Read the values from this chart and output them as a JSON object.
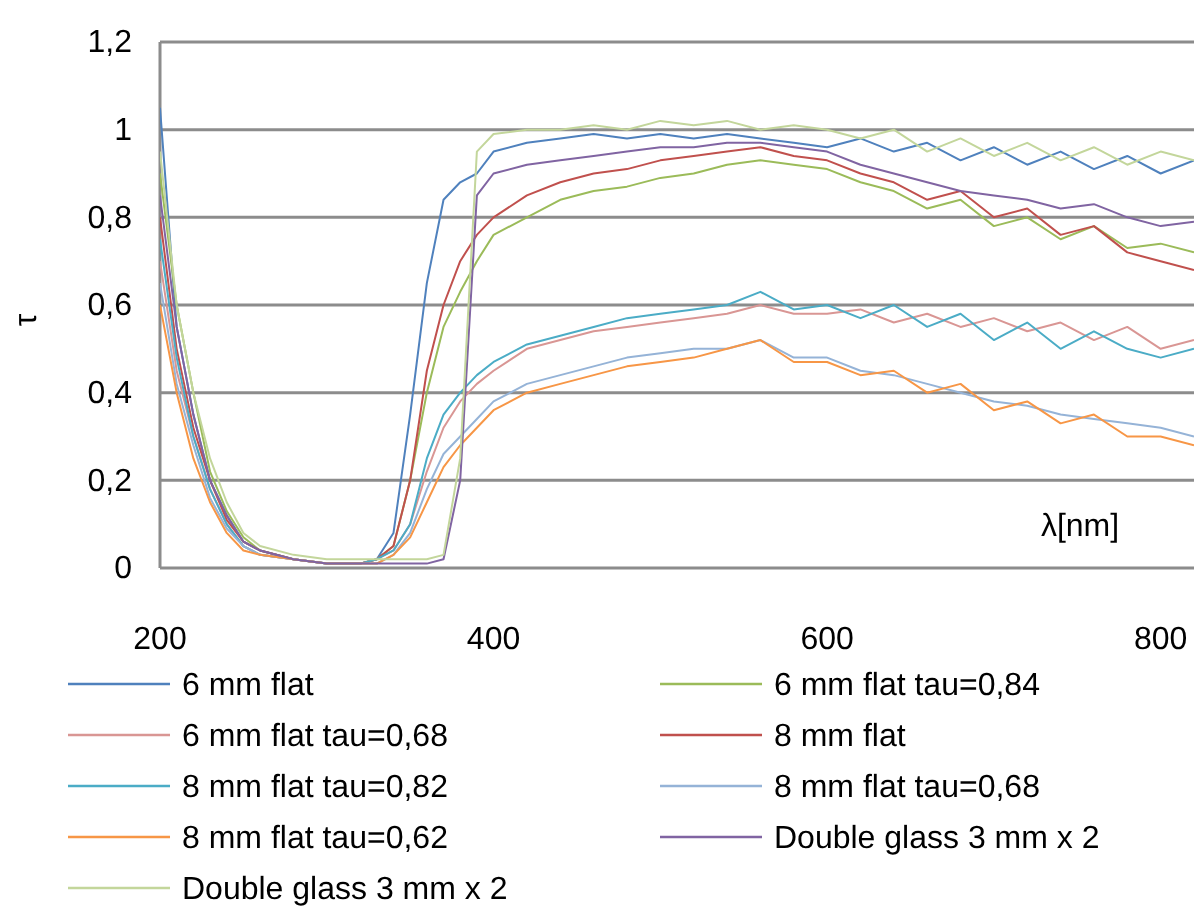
{
  "chart_data": {
    "type": "line",
    "x": [
      200,
      210,
      220,
      230,
      240,
      250,
      260,
      280,
      300,
      320,
      330,
      340,
      350,
      360,
      370,
      380,
      390,
      400,
      420,
      440,
      460,
      480,
      500,
      520,
      540,
      560,
      580,
      600,
      620,
      640,
      660,
      680,
      700,
      720,
      740,
      760,
      780,
      800,
      820
    ],
    "series": [
      {
        "name": "6 mm flat",
        "color": "#4f81bd",
        "values": [
          1.05,
          0.55,
          0.35,
          0.2,
          0.12,
          0.06,
          0.04,
          0.02,
          0.01,
          0.01,
          0.02,
          0.08,
          0.35,
          0.65,
          0.84,
          0.88,
          0.9,
          0.95,
          0.97,
          0.98,
          0.99,
          0.98,
          0.99,
          0.98,
          0.99,
          0.98,
          0.97,
          0.96,
          0.98,
          0.95,
          0.97,
          0.93,
          0.96,
          0.92,
          0.95,
          0.91,
          0.94,
          0.9,
          0.93
        ]
      },
      {
        "name": "6 mm flat tau=0,84",
        "color": "#9bbb59",
        "values": [
          0.9,
          0.6,
          0.4,
          0.22,
          0.13,
          0.07,
          0.04,
          0.02,
          0.01,
          0.01,
          0.02,
          0.05,
          0.2,
          0.4,
          0.55,
          0.63,
          0.7,
          0.76,
          0.8,
          0.84,
          0.86,
          0.87,
          0.89,
          0.9,
          0.92,
          0.93,
          0.92,
          0.91,
          0.88,
          0.86,
          0.82,
          0.84,
          0.78,
          0.8,
          0.75,
          0.78,
          0.73,
          0.74,
          0.72
        ]
      },
      {
        "name": "6 mm flat tau=0,68",
        "color": "#d99694",
        "values": [
          0.7,
          0.45,
          0.3,
          0.18,
          0.1,
          0.05,
          0.03,
          0.02,
          0.01,
          0.01,
          0.02,
          0.04,
          0.1,
          0.22,
          0.32,
          0.38,
          0.42,
          0.45,
          0.5,
          0.52,
          0.54,
          0.55,
          0.56,
          0.57,
          0.58,
          0.6,
          0.58,
          0.58,
          0.59,
          0.56,
          0.58,
          0.55,
          0.57,
          0.54,
          0.56,
          0.52,
          0.55,
          0.5,
          0.52
        ]
      },
      {
        "name": "8 mm flat",
        "color": "#c0504d",
        "values": [
          0.8,
          0.5,
          0.32,
          0.2,
          0.11,
          0.06,
          0.04,
          0.02,
          0.01,
          0.01,
          0.02,
          0.05,
          0.2,
          0.45,
          0.6,
          0.7,
          0.76,
          0.8,
          0.85,
          0.88,
          0.9,
          0.91,
          0.93,
          0.94,
          0.95,
          0.96,
          0.94,
          0.93,
          0.9,
          0.88,
          0.84,
          0.86,
          0.8,
          0.82,
          0.76,
          0.78,
          0.72,
          0.7,
          0.68
        ]
      },
      {
        "name": "8 mm flat tau=0,82",
        "color": "#4bacc6",
        "values": [
          0.75,
          0.48,
          0.3,
          0.18,
          0.1,
          0.05,
          0.03,
          0.02,
          0.01,
          0.01,
          0.02,
          0.04,
          0.1,
          0.25,
          0.35,
          0.4,
          0.44,
          0.47,
          0.51,
          0.53,
          0.55,
          0.57,
          0.58,
          0.59,
          0.6,
          0.63,
          0.59,
          0.6,
          0.57,
          0.6,
          0.55,
          0.58,
          0.52,
          0.56,
          0.5,
          0.54,
          0.5,
          0.48,
          0.5
        ]
      },
      {
        "name": "8 mm flat tau=0,68",
        "color": "#95b3d7",
        "values": [
          0.65,
          0.42,
          0.28,
          0.16,
          0.09,
          0.05,
          0.03,
          0.02,
          0.01,
          0.01,
          0.01,
          0.03,
          0.08,
          0.18,
          0.26,
          0.3,
          0.34,
          0.38,
          0.42,
          0.44,
          0.46,
          0.48,
          0.49,
          0.5,
          0.5,
          0.52,
          0.48,
          0.48,
          0.45,
          0.44,
          0.42,
          0.4,
          0.38,
          0.37,
          0.35,
          0.34,
          0.33,
          0.32,
          0.3
        ]
      },
      {
        "name": "8 mm flat tau=0,62",
        "color": "#f79646",
        "values": [
          0.6,
          0.4,
          0.25,
          0.15,
          0.08,
          0.04,
          0.03,
          0.02,
          0.01,
          0.01,
          0.01,
          0.03,
          0.07,
          0.15,
          0.23,
          0.28,
          0.32,
          0.36,
          0.4,
          0.42,
          0.44,
          0.46,
          0.47,
          0.48,
          0.5,
          0.52,
          0.47,
          0.47,
          0.44,
          0.45,
          0.4,
          0.42,
          0.36,
          0.38,
          0.33,
          0.35,
          0.3,
          0.3,
          0.28
        ]
      },
      {
        "name": "Double glass 3 mm x 2",
        "color": "#8064a2",
        "values": [
          0.85,
          0.55,
          0.35,
          0.2,
          0.12,
          0.06,
          0.04,
          0.02,
          0.01,
          0.01,
          0.01,
          0.01,
          0.01,
          0.01,
          0.02,
          0.2,
          0.85,
          0.9,
          0.92,
          0.93,
          0.94,
          0.95,
          0.96,
          0.96,
          0.97,
          0.97,
          0.96,
          0.95,
          0.92,
          0.9,
          0.88,
          0.86,
          0.85,
          0.84,
          0.82,
          0.83,
          0.8,
          0.78,
          0.79
        ]
      },
      {
        "name": "Double glass 3 mm x 2",
        "color": "#c3d69b",
        "values": [
          0.95,
          0.6,
          0.4,
          0.25,
          0.15,
          0.08,
          0.05,
          0.03,
          0.02,
          0.02,
          0.02,
          0.02,
          0.02,
          0.02,
          0.03,
          0.25,
          0.95,
          0.99,
          1.0,
          1.0,
          1.01,
          1.0,
          1.02,
          1.01,
          1.02,
          1.0,
          1.01,
          1.0,
          0.98,
          1.0,
          0.95,
          0.98,
          0.94,
          0.97,
          0.93,
          0.96,
          0.92,
          0.95,
          0.93
        ]
      }
    ],
    "xlim": [
      200,
      820
    ],
    "xticks": [
      200,
      400,
      600,
      800
    ],
    "ylim": [
      0,
      1.2
    ],
    "yticks": [
      0,
      {
        "value": 0.2,
        "label": "0,2"
      },
      {
        "value": 0.4,
        "label": "0,4"
      },
      {
        "value": 0.6,
        "label": "0,6"
      },
      {
        "value": 0.8,
        "label": "0,8"
      },
      1,
      {
        "value": 1.2,
        "label": "1,2"
      }
    ],
    "xlabel": "λ[nm]",
    "ylabel": "τ",
    "grid": "y",
    "legend": "bottom",
    "marker": "none",
    "line_style": "solid"
  }
}
